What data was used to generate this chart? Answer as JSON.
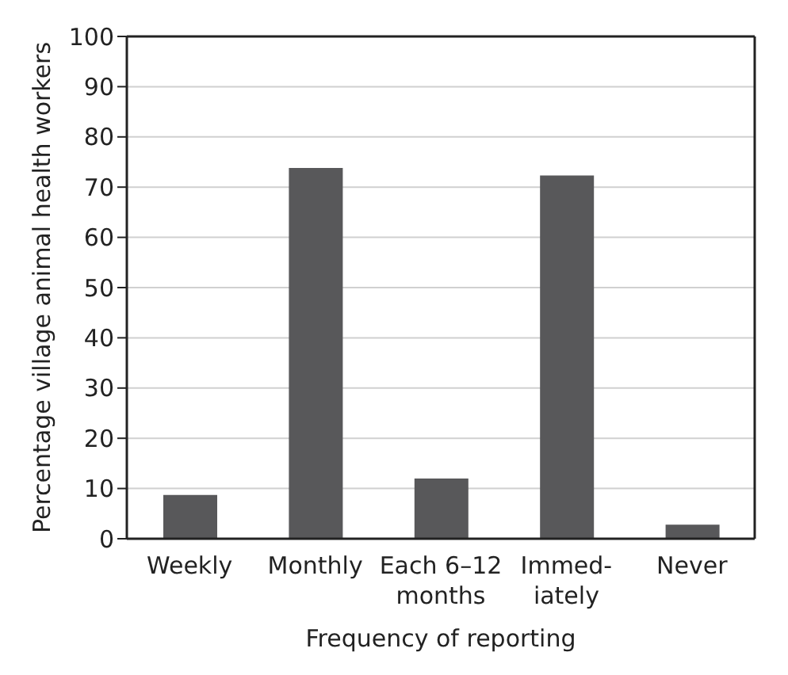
{
  "chart_data": {
    "type": "bar",
    "xlabel": "Frequency of reporting",
    "ylabel": "Percentage village animal health workers",
    "categories": [
      "Weekly",
      "Monthly",
      "Each 6–12\nmonths",
      "Immed-\niately",
      "Never"
    ],
    "values": [
      8.7,
      73.8,
      12.0,
      72.3,
      2.8
    ],
    "color": "#58585a",
    "ylim": [
      0,
      100
    ],
    "yticks": [
      0,
      10,
      20,
      30,
      40,
      50,
      60,
      70,
      80,
      90,
      100
    ],
    "grid": "y"
  }
}
